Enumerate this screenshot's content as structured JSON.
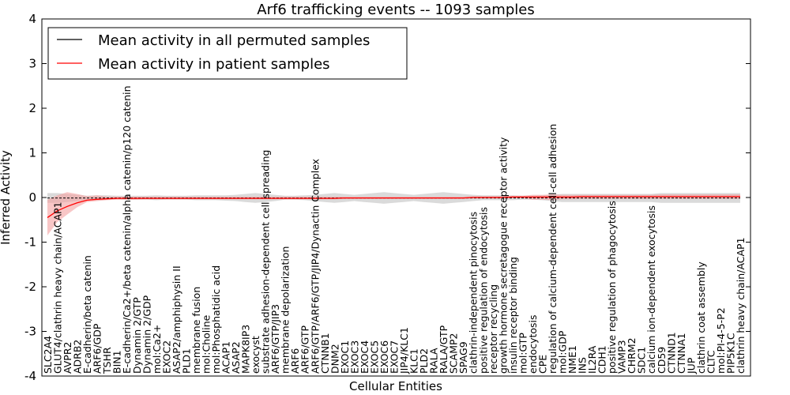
{
  "chart_data": {
    "type": "line",
    "title": "Arf6 trafficking events -- 1093 samples",
    "xlabel": "Cellular Entities",
    "ylabel": "Inferred Activity",
    "ylim": [
      -4,
      4
    ],
    "yticks": [
      -4,
      -3,
      -2,
      -1,
      0,
      1,
      2,
      3,
      4
    ],
    "grid": false,
    "legend_position": "top-left",
    "categories": [
      "SLC2A4",
      "GLUT4/clathrin heavy chain/ACAP1",
      "AVPR2",
      "ADRB2",
      "E-cadherin/beta catenin",
      "ARF6/GDP",
      "TSHR",
      "BIN1",
      "E-cadherin/Ca2+/beta catenin/alpha catenin/p120 catenin",
      "Dynamin 2/GTP",
      "Dynamin 2/GDP",
      "mol:Ca2+",
      "EXOC2",
      "ASAP2/amphiphysin II",
      "PLD1",
      "membrane fusion",
      "mol:Choline",
      "mol:Phosphatidic acid",
      "ACAP1",
      "ASAP2",
      "MAPK8IP3",
      "exocyst",
      "substrate adhesion-dependent cell spreading",
      "ARF6/GTP/JIP3",
      "membrane depolarization",
      "ARF6",
      "ARF6/GTP",
      "ARF6/GTP/ARF6/GTP/JIP4/Dynactin Complex",
      "CTNNB1",
      "DNM2",
      "EXOC1",
      "EXOC3",
      "EXOC4",
      "EXOC5",
      "EXOC6",
      "EXOC7",
      "JIP4/KLC1",
      "KLC1",
      "PLD2",
      "RALA",
      "RALA/GTP",
      "SCAMP2",
      "SPAG9",
      "clathrin-independent pinocytosis",
      "positive regulation of endocytosis",
      "receptor recycling",
      "growth hormone secretagogue receptor activity",
      "insulin receptor binding",
      "mol:GTP",
      "endocytosis",
      "CPE",
      "regulation of calcium-dependent cell-cell adhesion",
      "mol:GDP",
      "NME1",
      "INS",
      "IL2RA",
      "CDH1",
      "positive regulation of phagocytosis",
      "VAMP3",
      "CHRM2",
      "SDC1",
      "calcium ion-dependent exocytosis",
      "CD59",
      "CTNND1",
      "CTNNA1",
      "JUP",
      "clathrin coat assembly",
      "CLTC",
      "mol:PI-4-5-P2",
      "PIP5K1C",
      "clathrin heavy chain/ACAP1"
    ],
    "series": [
      {
        "name": "Mean activity in all permuted samples",
        "color": "#000000",
        "band_color": "#bbbbbb",
        "values": [
          -0.01,
          -0.01,
          -0.01,
          -0.01,
          -0.01,
          -0.01,
          -0.01,
          -0.01,
          -0.01,
          -0.01,
          -0.01,
          -0.01,
          -0.01,
          -0.01,
          -0.01,
          -0.01,
          -0.01,
          -0.01,
          -0.01,
          -0.01,
          -0.01,
          -0.01,
          -0.01,
          -0.01,
          -0.01,
          -0.01,
          -0.01,
          -0.01,
          -0.01,
          -0.01,
          -0.01,
          -0.01,
          -0.01,
          -0.01,
          -0.01,
          -0.01,
          -0.01,
          -0.01,
          -0.01,
          -0.01,
          -0.01,
          -0.01,
          -0.01,
          -0.01,
          -0.01,
          -0.01,
          -0.01,
          -0.01,
          -0.01,
          -0.01,
          -0.01,
          -0.01,
          -0.01,
          -0.01,
          -0.01,
          -0.01,
          -0.01,
          -0.01,
          -0.01,
          -0.01,
          -0.01,
          -0.01,
          -0.01,
          -0.01,
          -0.01,
          -0.01,
          -0.01,
          -0.01,
          -0.01,
          -0.01,
          -0.01
        ],
        "band_low": [
          -0.12,
          -0.12,
          -0.1,
          -0.08,
          -0.05,
          -0.06,
          -0.05,
          -0.04,
          -0.05,
          -0.05,
          -0.05,
          -0.06,
          -0.05,
          -0.05,
          -0.05,
          -0.06,
          -0.06,
          -0.06,
          -0.07,
          -0.08,
          -0.1,
          -0.12,
          -0.1,
          -0.08,
          -0.05,
          -0.05,
          -0.06,
          -0.08,
          -0.1,
          -0.12,
          -0.1,
          -0.08,
          -0.1,
          -0.12,
          -0.14,
          -0.12,
          -0.1,
          -0.08,
          -0.1,
          -0.12,
          -0.14,
          -0.12,
          -0.1,
          -0.08,
          -0.06,
          -0.06,
          -0.06,
          -0.06,
          -0.05,
          -0.05,
          -0.06,
          -0.08,
          -0.1,
          -0.1,
          -0.1,
          -0.1,
          -0.1,
          -0.1,
          -0.1,
          -0.1,
          -0.1,
          -0.1,
          -0.12,
          -0.12,
          -0.12,
          -0.12,
          -0.12,
          -0.12,
          -0.12,
          -0.12,
          -0.12
        ],
        "band_high": [
          0.1,
          0.1,
          0.08,
          0.06,
          0.04,
          0.05,
          0.05,
          0.04,
          0.04,
          0.04,
          0.04,
          0.05,
          0.04,
          0.04,
          0.04,
          0.05,
          0.05,
          0.05,
          0.05,
          0.06,
          0.08,
          0.1,
          0.08,
          0.06,
          0.04,
          0.04,
          0.05,
          0.06,
          0.08,
          0.1,
          0.08,
          0.06,
          0.08,
          0.1,
          0.12,
          0.1,
          0.08,
          0.06,
          0.08,
          0.1,
          0.12,
          0.1,
          0.08,
          0.06,
          0.05,
          0.05,
          0.05,
          0.05,
          0.04,
          0.04,
          0.05,
          0.06,
          0.08,
          0.08,
          0.08,
          0.08,
          0.08,
          0.08,
          0.08,
          0.08,
          0.08,
          0.08,
          0.1,
          0.1,
          0.1,
          0.1,
          0.1,
          0.1,
          0.1,
          0.1,
          0.1
        ]
      },
      {
        "name": "Mean activity in patient samples",
        "color": "#ff0000",
        "band_color": "#f4a0a0",
        "values": [
          -0.45,
          -0.3,
          -0.2,
          -0.12,
          -0.06,
          -0.04,
          -0.03,
          -0.02,
          -0.02,
          -0.02,
          -0.02,
          -0.02,
          -0.02,
          -0.02,
          -0.02,
          -0.02,
          -0.02,
          -0.02,
          -0.02,
          -0.02,
          -0.02,
          -0.02,
          -0.02,
          -0.02,
          -0.02,
          -0.02,
          -0.02,
          -0.02,
          -0.02,
          -0.02,
          -0.01,
          -0.01,
          -0.01,
          -0.01,
          -0.01,
          -0.01,
          -0.01,
          -0.01,
          -0.01,
          -0.01,
          -0.01,
          -0.01,
          -0.01,
          0.0,
          0.0,
          0.0,
          0.0,
          0.01,
          0.01,
          0.01,
          0.01,
          0.01,
          0.01,
          0.01,
          0.02,
          0.02,
          0.02,
          0.02,
          0.02,
          0.02,
          0.02,
          0.02,
          0.02,
          0.02,
          0.02,
          0.02,
          0.02,
          0.02,
          0.02,
          0.02,
          0.02
        ],
        "band_low": [
          -0.85,
          -0.55,
          -0.38,
          -0.22,
          -0.1,
          -0.08,
          -0.06,
          -0.05,
          -0.05,
          -0.05,
          -0.04,
          -0.04,
          -0.04,
          -0.04,
          -0.04,
          -0.04,
          -0.04,
          -0.04,
          -0.04,
          -0.04,
          -0.04,
          -0.04,
          -0.04,
          -0.04,
          -0.04,
          -0.04,
          -0.04,
          -0.04,
          -0.04,
          -0.04,
          -0.03,
          -0.03,
          -0.03,
          -0.03,
          -0.03,
          -0.03,
          -0.03,
          -0.03,
          -0.03,
          -0.03,
          -0.03,
          -0.03,
          -0.03,
          -0.02,
          -0.02,
          -0.02,
          -0.02,
          -0.02,
          -0.02,
          -0.05,
          -0.05,
          -0.06,
          -0.04,
          -0.04,
          -0.03,
          -0.03,
          -0.03,
          -0.03,
          -0.03,
          -0.03,
          -0.03,
          -0.03,
          -0.03,
          -0.03,
          -0.03,
          -0.03,
          -0.03,
          -0.03,
          -0.03,
          -0.03,
          -0.03
        ],
        "band_high": [
          -0.05,
          0.05,
          0.12,
          0.08,
          0.03,
          0.05,
          0.02,
          0.02,
          0.02,
          0.02,
          0.02,
          0.02,
          0.02,
          0.02,
          0.02,
          0.02,
          0.02,
          0.02,
          0.02,
          0.02,
          0.02,
          0.02,
          0.02,
          0.02,
          0.02,
          0.02,
          0.02,
          0.02,
          0.02,
          0.02,
          0.02,
          0.02,
          0.02,
          0.02,
          0.02,
          0.02,
          0.02,
          0.02,
          0.02,
          0.02,
          0.02,
          0.02,
          0.02,
          0.03,
          0.03,
          0.03,
          0.03,
          0.04,
          0.04,
          0.06,
          0.06,
          0.07,
          0.06,
          0.06,
          0.06,
          0.06,
          0.06,
          0.06,
          0.06,
          0.06,
          0.06,
          0.06,
          0.07,
          0.07,
          0.07,
          0.07,
          0.07,
          0.07,
          0.07,
          0.07,
          0.07
        ]
      }
    ]
  }
}
